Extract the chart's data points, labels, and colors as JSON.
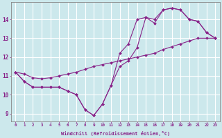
{
  "xlabel": "Windchill (Refroidissement éolien,°C)",
  "bg_color": "#cce8ec",
  "grid_color": "#ffffff",
  "line_color": "#882288",
  "xlim": [
    -0.5,
    23.5
  ],
  "ylim": [
    8.6,
    14.9
  ],
  "xticks": [
    0,
    1,
    2,
    3,
    4,
    5,
    6,
    7,
    8,
    9,
    10,
    11,
    12,
    13,
    14,
    15,
    16,
    17,
    18,
    19,
    20,
    21,
    22,
    23
  ],
  "yticks": [
    9,
    10,
    11,
    12,
    13,
    14
  ],
  "series": [
    [
      11.2,
      10.7,
      10.4,
      10.4,
      10.4,
      10.4,
      10.2,
      10.0,
      9.2,
      8.9,
      9.5,
      10.5,
      12.2,
      12.7,
      14.0,
      14.1,
      13.8,
      14.5,
      14.6,
      14.5,
      14.0,
      13.9,
      13.3,
      13.0
    ],
    [
      11.2,
      10.7,
      10.4,
      10.4,
      10.4,
      10.4,
      10.2,
      10.0,
      9.2,
      8.9,
      9.5,
      10.5,
      11.5,
      11.8,
      12.5,
      14.1,
      14.0,
      14.5,
      14.6,
      14.5,
      14.0,
      13.9,
      13.3,
      13.0
    ],
    [
      11.2,
      11.1,
      10.9,
      10.85,
      10.9,
      11.0,
      11.1,
      11.2,
      11.35,
      11.5,
      11.6,
      11.7,
      11.8,
      11.9,
      12.0,
      12.1,
      12.2,
      12.4,
      12.55,
      12.7,
      12.85,
      13.0,
      13.0,
      13.0
    ]
  ]
}
